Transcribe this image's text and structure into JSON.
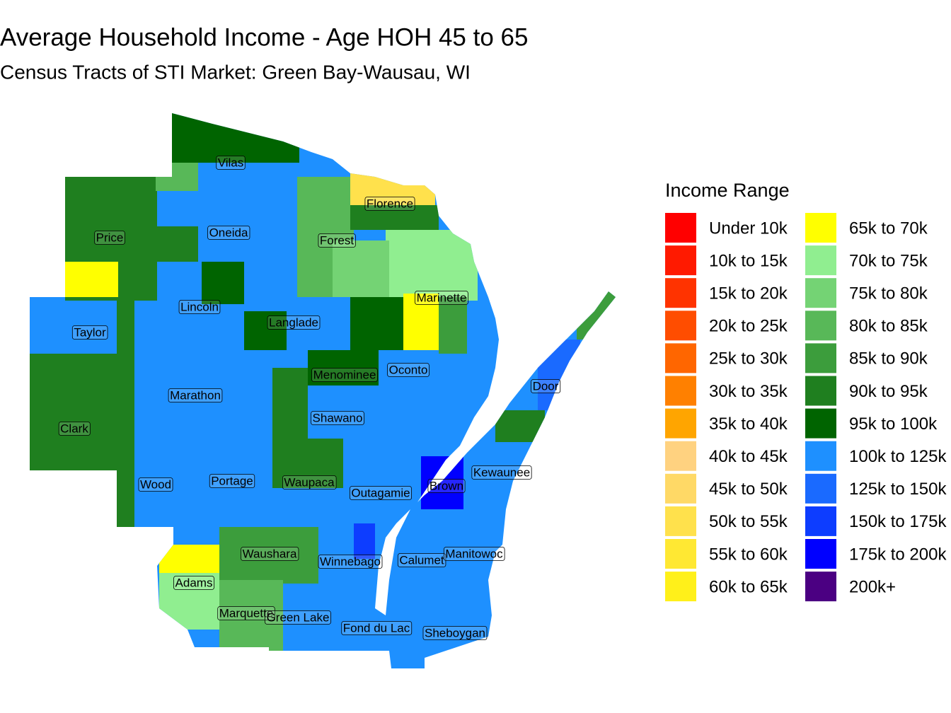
{
  "title": "Average Household Income - Age HOH 45 to 65",
  "subtitle": "Census Tracts of STI Market: Green Bay-Wausau, WI",
  "legend": {
    "title": "Income Range",
    "items": [
      {
        "label": "Under 10k",
        "color": "#ff0000"
      },
      {
        "label": "10k to 15k",
        "color": "#ff1a00"
      },
      {
        "label": "15k to 20k",
        "color": "#ff3300"
      },
      {
        "label": "20k to 25k",
        "color": "#ff4d00"
      },
      {
        "label": "25k to 30k",
        "color": "#ff6600"
      },
      {
        "label": "30k to 35k",
        "color": "#ff8000"
      },
      {
        "label": "35k to 40k",
        "color": "#ffa500"
      },
      {
        "label": "40k to 45k",
        "color": "#ffd280"
      },
      {
        "label": "45k to 50k",
        "color": "#ffd966"
      },
      {
        "label": "50k to 55k",
        "color": "#ffe14c"
      },
      {
        "label": "55k to 60k",
        "color": "#ffe833"
      },
      {
        "label": "60k to 65k",
        "color": "#fff01a"
      },
      {
        "label": "65k to 70k",
        "color": "#ffff00"
      },
      {
        "label": "70k to 75k",
        "color": "#90ee90"
      },
      {
        "label": "75k to 80k",
        "color": "#74d374"
      },
      {
        "label": "80k to 85k",
        "color": "#58b858"
      },
      {
        "label": "85k to 90k",
        "color": "#3c9d3c"
      },
      {
        "label": "90k to 95k",
        "color": "#1f7f1f"
      },
      {
        "label": "95k to 100k",
        "color": "#006400"
      },
      {
        "label": "100k to 125k",
        "color": "#1e90ff"
      },
      {
        "label": "125k to 150k",
        "color": "#1a6aff"
      },
      {
        "label": "150k to 175k",
        "color": "#0d3dff"
      },
      {
        "label": "175k to 200k",
        "color": "#0000ff"
      },
      {
        "label": "200k+",
        "color": "#4b0082"
      }
    ]
  },
  "counties": [
    "Vilas",
    "Florence",
    "Price",
    "Oneida",
    "Forest",
    "Marinette",
    "Lincoln",
    "Langlade",
    "Taylor",
    "Oconto",
    "Menominee",
    "Door",
    "Marathon",
    "Shawano",
    "Clark",
    "Kewaunee",
    "Wood",
    "Portage",
    "Waupaca",
    "Outagamie",
    "Brown",
    "Waushara",
    "Winnebago",
    "Calumet",
    "Manitowoc",
    "Adams",
    "Marquette",
    "Green Lake",
    "Fond du Lac",
    "Sheboygan"
  ]
}
